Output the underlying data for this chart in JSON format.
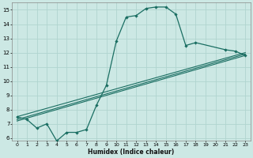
{
  "xlabel": "Humidex (Indice chaleur)",
  "xlim": [
    -0.5,
    23.5
  ],
  "ylim": [
    5.8,
    15.5
  ],
  "xticks": [
    0,
    1,
    2,
    3,
    4,
    5,
    6,
    7,
    8,
    9,
    10,
    11,
    12,
    13,
    14,
    15,
    16,
    17,
    18,
    19,
    20,
    21,
    22,
    23
  ],
  "yticks": [
    6,
    7,
    8,
    9,
    10,
    11,
    12,
    13,
    14,
    15
  ],
  "bg_color": "#cce8e4",
  "line_color": "#1a6e62",
  "grid_color": "#b0d4cf",
  "main_series": {
    "x": [
      0,
      1,
      2,
      3,
      4,
      5,
      6,
      7,
      8,
      9,
      10,
      11,
      12,
      13,
      14,
      15,
      16,
      17,
      18,
      21,
      22,
      23
    ],
    "y": [
      7.5,
      7.3,
      6.7,
      7.0,
      5.8,
      6.4,
      6.4,
      6.6,
      8.3,
      9.7,
      12.8,
      14.5,
      14.6,
      15.1,
      15.2,
      15.2,
      14.7,
      12.5,
      12.7,
      12.2,
      12.1,
      11.8
    ]
  },
  "straight_lines": [
    {
      "x": [
        0,
        23
      ],
      "y": [
        7.5,
        12.0
      ]
    },
    {
      "x": [
        0,
        23
      ],
      "y": [
        7.3,
        11.9
      ]
    },
    {
      "x": [
        0,
        23
      ],
      "y": [
        7.2,
        11.8
      ]
    }
  ]
}
